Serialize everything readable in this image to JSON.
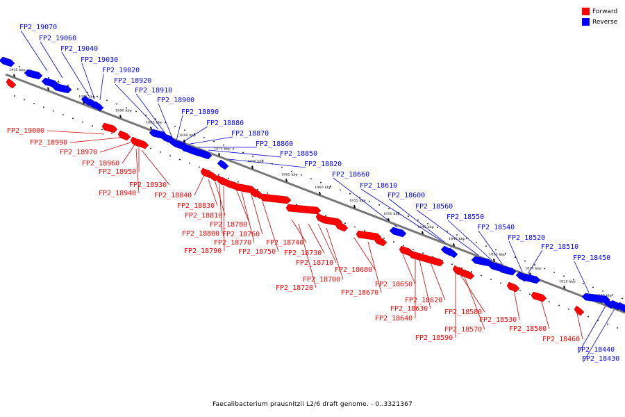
{
  "caption": "Faecalibacterium prausnitzii L2/6 draft genome. - 0..3321367",
  "legend": [
    {
      "label": "Forward",
      "color": "#ff0000"
    },
    {
      "label": "Reverse",
      "color": "#0000ff"
    }
  ],
  "colors": {
    "forward": "#ff0000",
    "reverse": "#0000ff",
    "forward_line": "#cc0000",
    "reverse_line": "#0000cc",
    "backbone": "#777777"
  },
  "scale_ticks": [
    "1905 kbp",
    "1900 kbp",
    "1895 kbp",
    "1890 kbp",
    "1885 kbp",
    "1880 kbp",
    "1875 kbp",
    "1870 kbp",
    "1865 kbp",
    "1860 kbp",
    "1855 kbp",
    "1850 kbp",
    "1845 kbp",
    "1840 kbp",
    "1835 kbp",
    "1830 kbp",
    "1825 kbp",
    "1820 kbp"
  ],
  "reverse_genes": [
    "FP2_19070",
    "FP2_19060",
    "FP2_19040",
    "FP2_19030",
    "FP2_19020",
    "FP2_18920",
    "FP2_18910",
    "FP2_18900",
    "FP2_18890",
    "FP2_18880",
    "FP2_18870",
    "FP2_18860",
    "FP2_18850",
    "FP2_18820",
    "FP2_18660",
    "FP2_18610",
    "FP2_18600",
    "FP2_18560",
    "FP2_18550",
    "FP2_18540",
    "FP2_18520",
    "FP2_18510",
    "FP2_18450",
    "FP2_18440",
    "FP2_18430"
  ],
  "forward_genes": [
    "FP2_19000",
    "FP2_18990",
    "FP2_18970",
    "FP2_18960",
    "FP2_18950",
    "FP2_18940",
    "FP2_18930",
    "FP2_18840",
    "FP2_18830",
    "FP2_18810",
    "FP2_18800",
    "FP2_18790",
    "FP2_18780",
    "FP2_18770",
    "FP2_18760",
    "FP2_18750",
    "FP2_18740",
    "FP2_18730",
    "FP2_18720",
    "FP2_18710",
    "FP2_18700",
    "FP2_18680",
    "FP2_18670",
    "FP2_18650",
    "FP2_18640",
    "FP2_18630",
    "FP2_18620",
    "FP2_18590",
    "FP2_18580",
    "FP2_18570",
    "FP2_18530",
    "FP2_18500",
    "FP2_18460"
  ]
}
